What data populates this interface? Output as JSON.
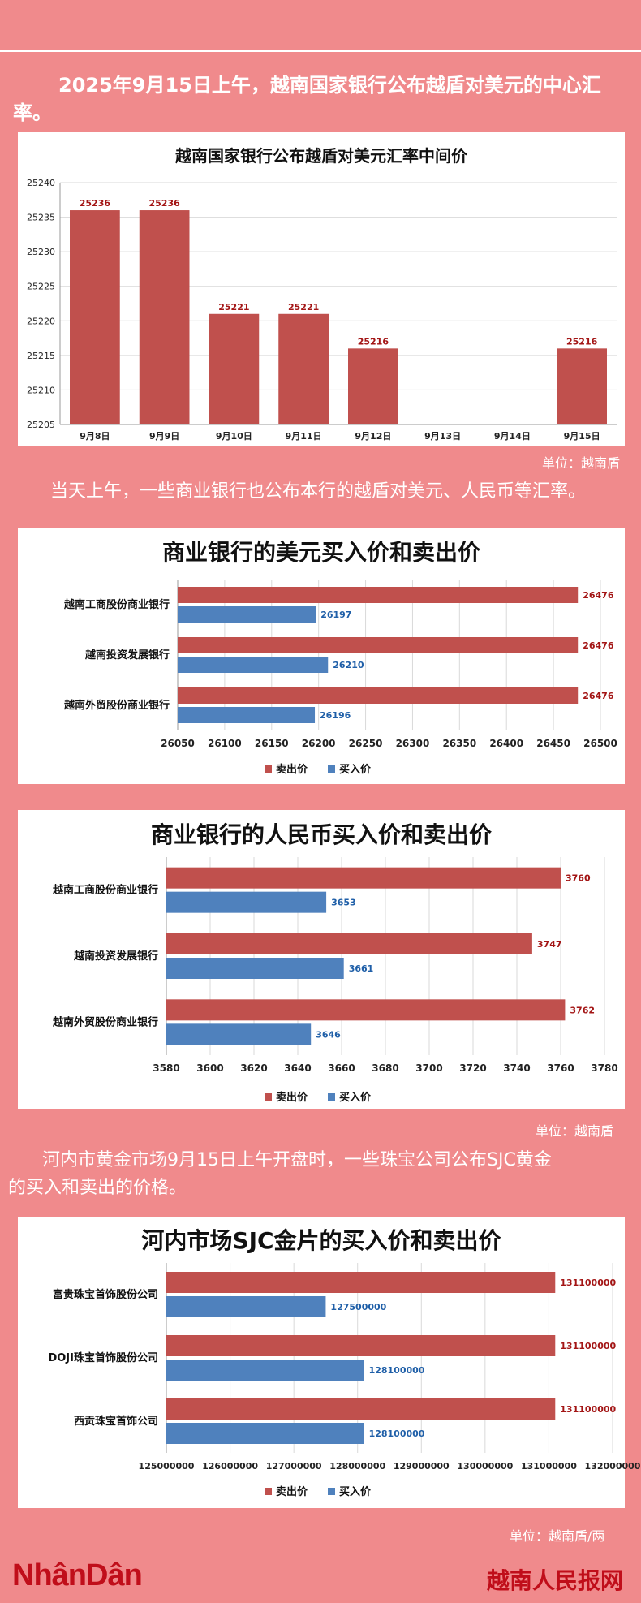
{
  "intro": {
    "lines": [
      "2025年9月15日上午，越南国家银行公布越盾对美元的中心汇",
      "率。"
    ]
  },
  "chart1": {
    "title": "越南国家银行公布越盾对美元汇率中间价",
    "unit": "单位：越南盾"
  },
  "para2": "当天上午，一些商业银行也公布本行的越盾对美元、人民币等汇率。",
  "chart2": {
    "title": "商业银行的美元买入价和卖出价"
  },
  "chart3": {
    "title": "商业银行的人民币买入价和卖出价",
    "unit": "单位：越南盾"
  },
  "para3": {
    "lines": [
      "河内市黄金市场9月15日上午开盘时，一些珠宝公司公布SJC黄金",
      "的买入和卖出的价格。"
    ]
  },
  "chart4": {
    "title": "河内市场SJC金片的买入价和卖出价",
    "unit": "单位：越南盾/两"
  },
  "footer": {
    "logo_left": "NhânDân",
    "logo_right": "越南人民报网"
  },
  "colors": {
    "sell": "#c0504d",
    "buy": "#4f81bd",
    "background": "#f08a8c"
  },
  "chart_data": [
    {
      "type": "bar",
      "title": "越南国家银行公布越盾对美元汇率中间价",
      "categories": [
        "9月8日",
        "9月9日",
        "9月10日",
        "9月11日",
        "9月12日",
        "9月13日",
        "9月14日",
        "9月15日"
      ],
      "values": [
        25236,
        25236,
        25221,
        25221,
        25216,
        null,
        null,
        25216
      ],
      "data_labels": [
        "25236",
        "25236",
        "25221",
        "25221",
        "25216",
        "",
        "",
        "25216"
      ],
      "ylim": [
        25205,
        25240
      ],
      "yticks": [
        "25205",
        "25210",
        "25215",
        "25220",
        "25225",
        "25230",
        "25235",
        "25240"
      ],
      "grid": true
    },
    {
      "type": "bar",
      "orientation": "horizontal",
      "title": "商业银行的美元买入价和卖出价",
      "categories": [
        "越南工商股份商业银行",
        "越南投资发展银行",
        "越南外贸股份商业银行"
      ],
      "series": [
        {
          "name": "卖出价",
          "values": [
            26476,
            26476,
            26476
          ]
        },
        {
          "name": "买入价",
          "values": [
            26197,
            26210,
            26196
          ]
        }
      ],
      "sell_labels": [
        "26476",
        "26476",
        "26476"
      ],
      "buy_labels": [
        "26197",
        "26210",
        "26196"
      ],
      "xlim": [
        26050,
        26500
      ],
      "xticks": [
        "26050",
        "26100",
        "26150",
        "26200",
        "26250",
        "26300",
        "26350",
        "26400",
        "26450",
        "26500"
      ],
      "legend": "bottom",
      "legend_labels": [
        "卖出价",
        "买入价"
      ]
    },
    {
      "type": "bar",
      "orientation": "horizontal",
      "title": "商业银行的人民币买入价和卖出价",
      "categories": [
        "越南工商股份商业银行",
        "越南投资发展银行",
        "越南外贸股份商业银行"
      ],
      "series": [
        {
          "name": "卖出价",
          "values": [
            3760,
            3747,
            3762
          ]
        },
        {
          "name": "买入价",
          "values": [
            3653,
            3661,
            3646
          ]
        }
      ],
      "sell_labels": [
        "3760",
        "3747",
        "3762"
      ],
      "buy_labels": [
        "3653",
        "3661",
        "3646"
      ],
      "xlim": [
        3580,
        3780
      ],
      "xticks": [
        "3580",
        "3600",
        "3620",
        "3640",
        "3660",
        "3680",
        "3700",
        "3720",
        "3740",
        "3760",
        "3780"
      ],
      "legend": "bottom",
      "legend_labels": [
        "卖出价",
        "买入价"
      ]
    },
    {
      "type": "bar",
      "orientation": "horizontal",
      "title": "河内市场SJC金片的买入价和卖出价",
      "categories": [
        "富贵珠宝首饰股份公司",
        "DOJI珠宝首饰股份公司",
        "西贡珠宝首饰公司"
      ],
      "series": [
        {
          "name": "卖出价",
          "values": [
            131100000,
            131100000,
            131100000
          ]
        },
        {
          "name": "买入价",
          "values": [
            127500000,
            128100000,
            128100000
          ]
        }
      ],
      "sell_labels": [
        "131100000",
        "131100000",
        "131100000"
      ],
      "buy_labels": [
        "127500000",
        "128100000",
        "128100000"
      ],
      "xlim": [
        125000000,
        132000000
      ],
      "xticks": [
        "125000000",
        "126000000",
        "127000000",
        "128000000",
        "129000000",
        "130000000",
        "131000000",
        "132000000"
      ],
      "legend": "bottom",
      "legend_labels": [
        "卖出价",
        "买入价"
      ]
    }
  ]
}
